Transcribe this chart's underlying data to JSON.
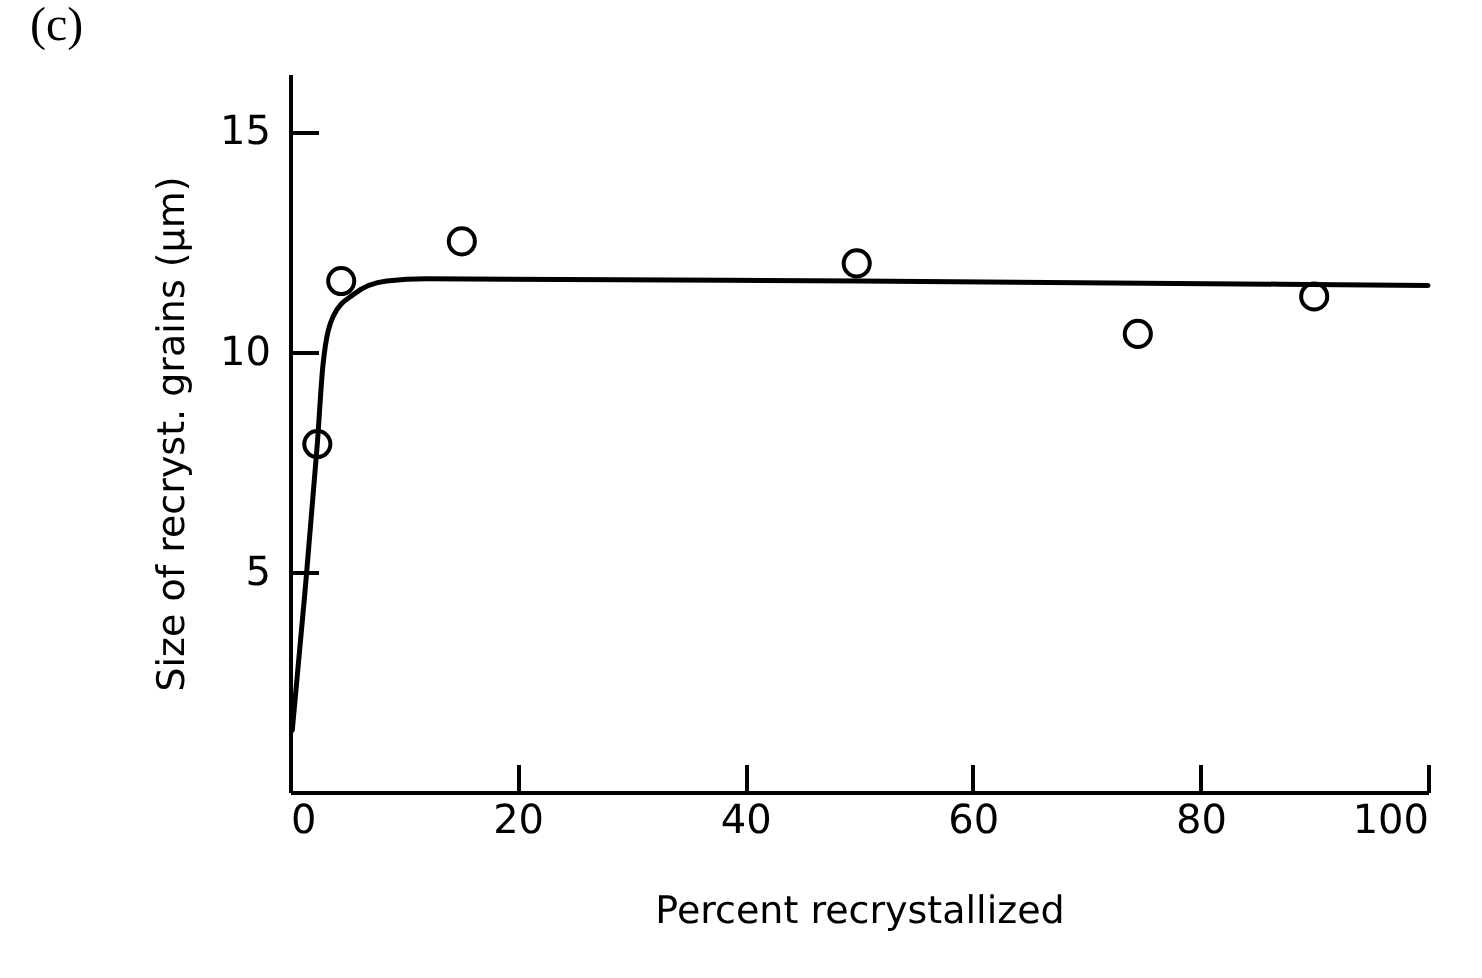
{
  "chart_data": {
    "type": "scatter",
    "title": "(c)",
    "xlabel": "Percent recrystallized",
    "ylabel": "Size of recryst. grains (μm)",
    "xlim": [
      0,
      100
    ],
    "ylim": [
      0,
      16.3
    ],
    "xticks": [
      0,
      20,
      40,
      60,
      80,
      100
    ],
    "yticks": [
      5,
      10,
      15
    ],
    "grid": false,
    "series": [
      {
        "marker": "circle",
        "color": "#000000",
        "x": [
          2.4,
          4.5,
          15.1,
          49.8,
          74.5,
          90
        ],
        "values": [
          7.9,
          11.6,
          12.5,
          12.0,
          10.4,
          11.25
        ]
      },
      {
        "type": "line",
        "color": "#000000",
        "line_style": "solid",
        "x": [
          0.2,
          1.3,
          2.4,
          2.9,
          3.8,
          5.6,
          8.5,
          12,
          50,
          100
        ],
        "values": [
          1.4,
          4.5,
          7.9,
          9.7,
          10.8,
          11.3,
          11.6,
          11.65,
          11.6,
          11.5
        ]
      }
    ]
  }
}
